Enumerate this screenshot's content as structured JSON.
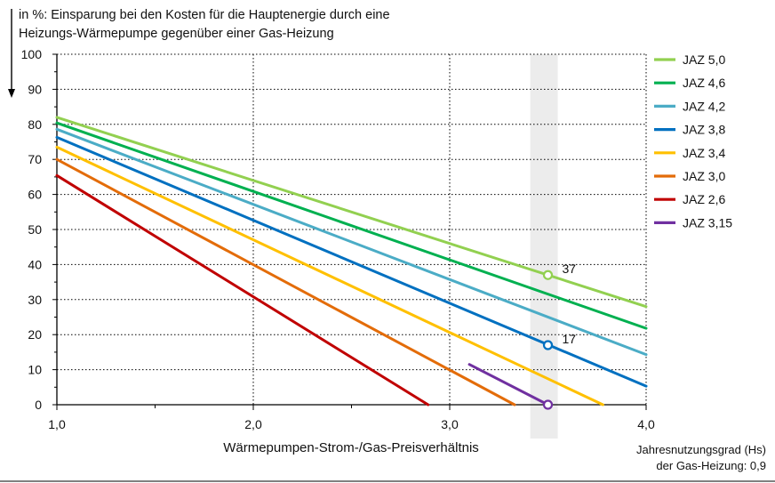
{
  "chart_data": {
    "type": "line",
    "title_lines": [
      "in %: Einsparung bei den Kosten für die Hauptenergie durch eine",
      "Heizungs-Wärmepumpe  gegenüber einer Gas-Heizung"
    ],
    "xlabel": "Wärmepumpen-Strom-/Gas-Preisverhältnis",
    "note_lines": [
      "Jahresnutzungsgrad (Hs)",
      "der Gas-Heizung: 0,9"
    ],
    "xlim": [
      1.0,
      4.0
    ],
    "ylim": [
      0,
      100
    ],
    "x_ticks": [
      "1,0",
      "2,0",
      "3,0",
      "4,0"
    ],
    "x_tick_values": [
      1.0,
      2.0,
      3.0,
      4.0
    ],
    "y_ticks": [
      "0",
      "10",
      "20",
      "30",
      "40",
      "50",
      "60",
      "70",
      "80",
      "90",
      "100"
    ],
    "y_tick_values": [
      0,
      10,
      20,
      30,
      40,
      50,
      60,
      70,
      80,
      90,
      100
    ],
    "grid": "dotted",
    "legend_position": "right",
    "highlight_band": [
      3.41,
      3.55
    ],
    "series": [
      {
        "name": "JAZ 5,0",
        "color": "#92d050",
        "x": [
          1.0,
          4.0
        ],
        "y": [
          82,
          28
        ]
      },
      {
        "name": "JAZ 4,6",
        "color": "#00b050",
        "x": [
          1.0,
          4.0
        ],
        "y": [
          80.4,
          21.8
        ]
      },
      {
        "name": "JAZ 4,2",
        "color": "#4bacc6",
        "x": [
          1.0,
          4.0
        ],
        "y": [
          78.6,
          14.3
        ]
      },
      {
        "name": "JAZ 3,8",
        "color": "#0070c0",
        "x": [
          1.0,
          4.0
        ],
        "y": [
          76.3,
          5.3
        ]
      },
      {
        "name": "JAZ 3,4",
        "color": "#ffc000",
        "x": [
          1.0,
          3.78
        ],
        "y": [
          73.5,
          0
        ]
      },
      {
        "name": "JAZ 3,0",
        "color": "#e36c09",
        "x": [
          1.0,
          3.33
        ],
        "y": [
          70,
          0
        ]
      },
      {
        "name": "JAZ 2,6",
        "color": "#c00000",
        "x": [
          1.0,
          2.89
        ],
        "y": [
          65.4,
          0
        ]
      },
      {
        "name": "JAZ 3,15",
        "color": "#7030a0",
        "x": [
          3.1,
          3.5
        ],
        "y": [
          11.5,
          0
        ]
      }
    ],
    "markers": [
      {
        "x": 3.5,
        "y": 37,
        "color": "#92d050",
        "label": "37"
      },
      {
        "x": 3.5,
        "y": 17,
        "color": "#0070c0",
        "label": "17"
      },
      {
        "x": 3.5,
        "y": 0,
        "color": "#7030a0",
        "label": ""
      }
    ]
  }
}
